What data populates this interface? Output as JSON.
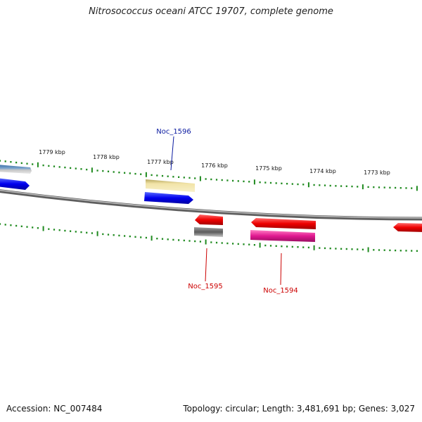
{
  "title": "Nitrosococcus oceani ATCC 19707, complete genome",
  "footer": {
    "accession": "Accession: NC_007484",
    "summary": "Topology: circular; Length: 3,481,691 bp; Genes: 3,027"
  },
  "tick_labels": [
    "1779 kbp",
    "1778 kbp",
    "1777 kbp",
    "1776 kbp",
    "1775 kbp",
    "1774 kbp",
    "1773 kbp"
  ],
  "gene_labels": [
    {
      "text": "Noc_1596",
      "color": "#0a1aa0"
    },
    {
      "text": "Noc_1595",
      "color": "#cc0000"
    },
    {
      "text": "Noc_1594",
      "color": "#cc0000"
    }
  ],
  "colors": {
    "backbone": "#808080",
    "tick": "#1f8a1f",
    "forward_gene": "#0000ee",
    "reverse_gene": "#ee0000",
    "magenta_gene": "#e01890",
    "khaki_gene": "#eedc96",
    "steel_gene": "#4a7fb5",
    "gray_gene": "#666666"
  }
}
